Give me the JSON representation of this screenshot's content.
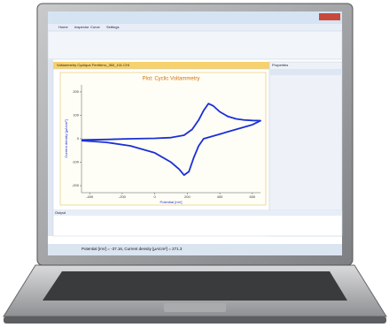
{
  "window": {
    "tabs": [
      "Home",
      "Inspector",
      "Curve",
      "Settings"
    ],
    "document_tab": "Voltammetry Cyclique Ferriferro_360_101.CHI",
    "properties_title": "Properties",
    "output_title": "Output",
    "status": "Potential [mV] = -37.16, Current density [µA/cm²] = 271.3"
  },
  "chart": {
    "type": "line",
    "title": "Plot: Cyclic Voltammetry",
    "x_label": "Potential [mV]",
    "y_label": "Current density [µA/cm²]",
    "color": "#1a2fd6",
    "x": [
      -450,
      -300,
      -150,
      0,
      100,
      180,
      230,
      270,
      300,
      330,
      360,
      400,
      450,
      500,
      550,
      600,
      650,
      600,
      500,
      400,
      350,
      300,
      270,
      240,
      210,
      180,
      150,
      100,
      0,
      -150,
      -300,
      -450
    ],
    "values": [
      -5,
      -3,
      0,
      2,
      5,
      15,
      40,
      80,
      120,
      150,
      140,
      115,
      95,
      85,
      80,
      78,
      77,
      60,
      40,
      20,
      10,
      0,
      -30,
      -80,
      -140,
      -155,
      -130,
      -100,
      -60,
      -30,
      -15,
      -8
    ],
    "xlim": [
      -450,
      650
    ],
    "ylim": [
      -230,
      230
    ],
    "xticks": [
      -400,
      -200,
      0,
      200,
      400,
      600
    ],
    "yticks": [
      -200,
      -100,
      0,
      100,
      200
    ]
  }
}
